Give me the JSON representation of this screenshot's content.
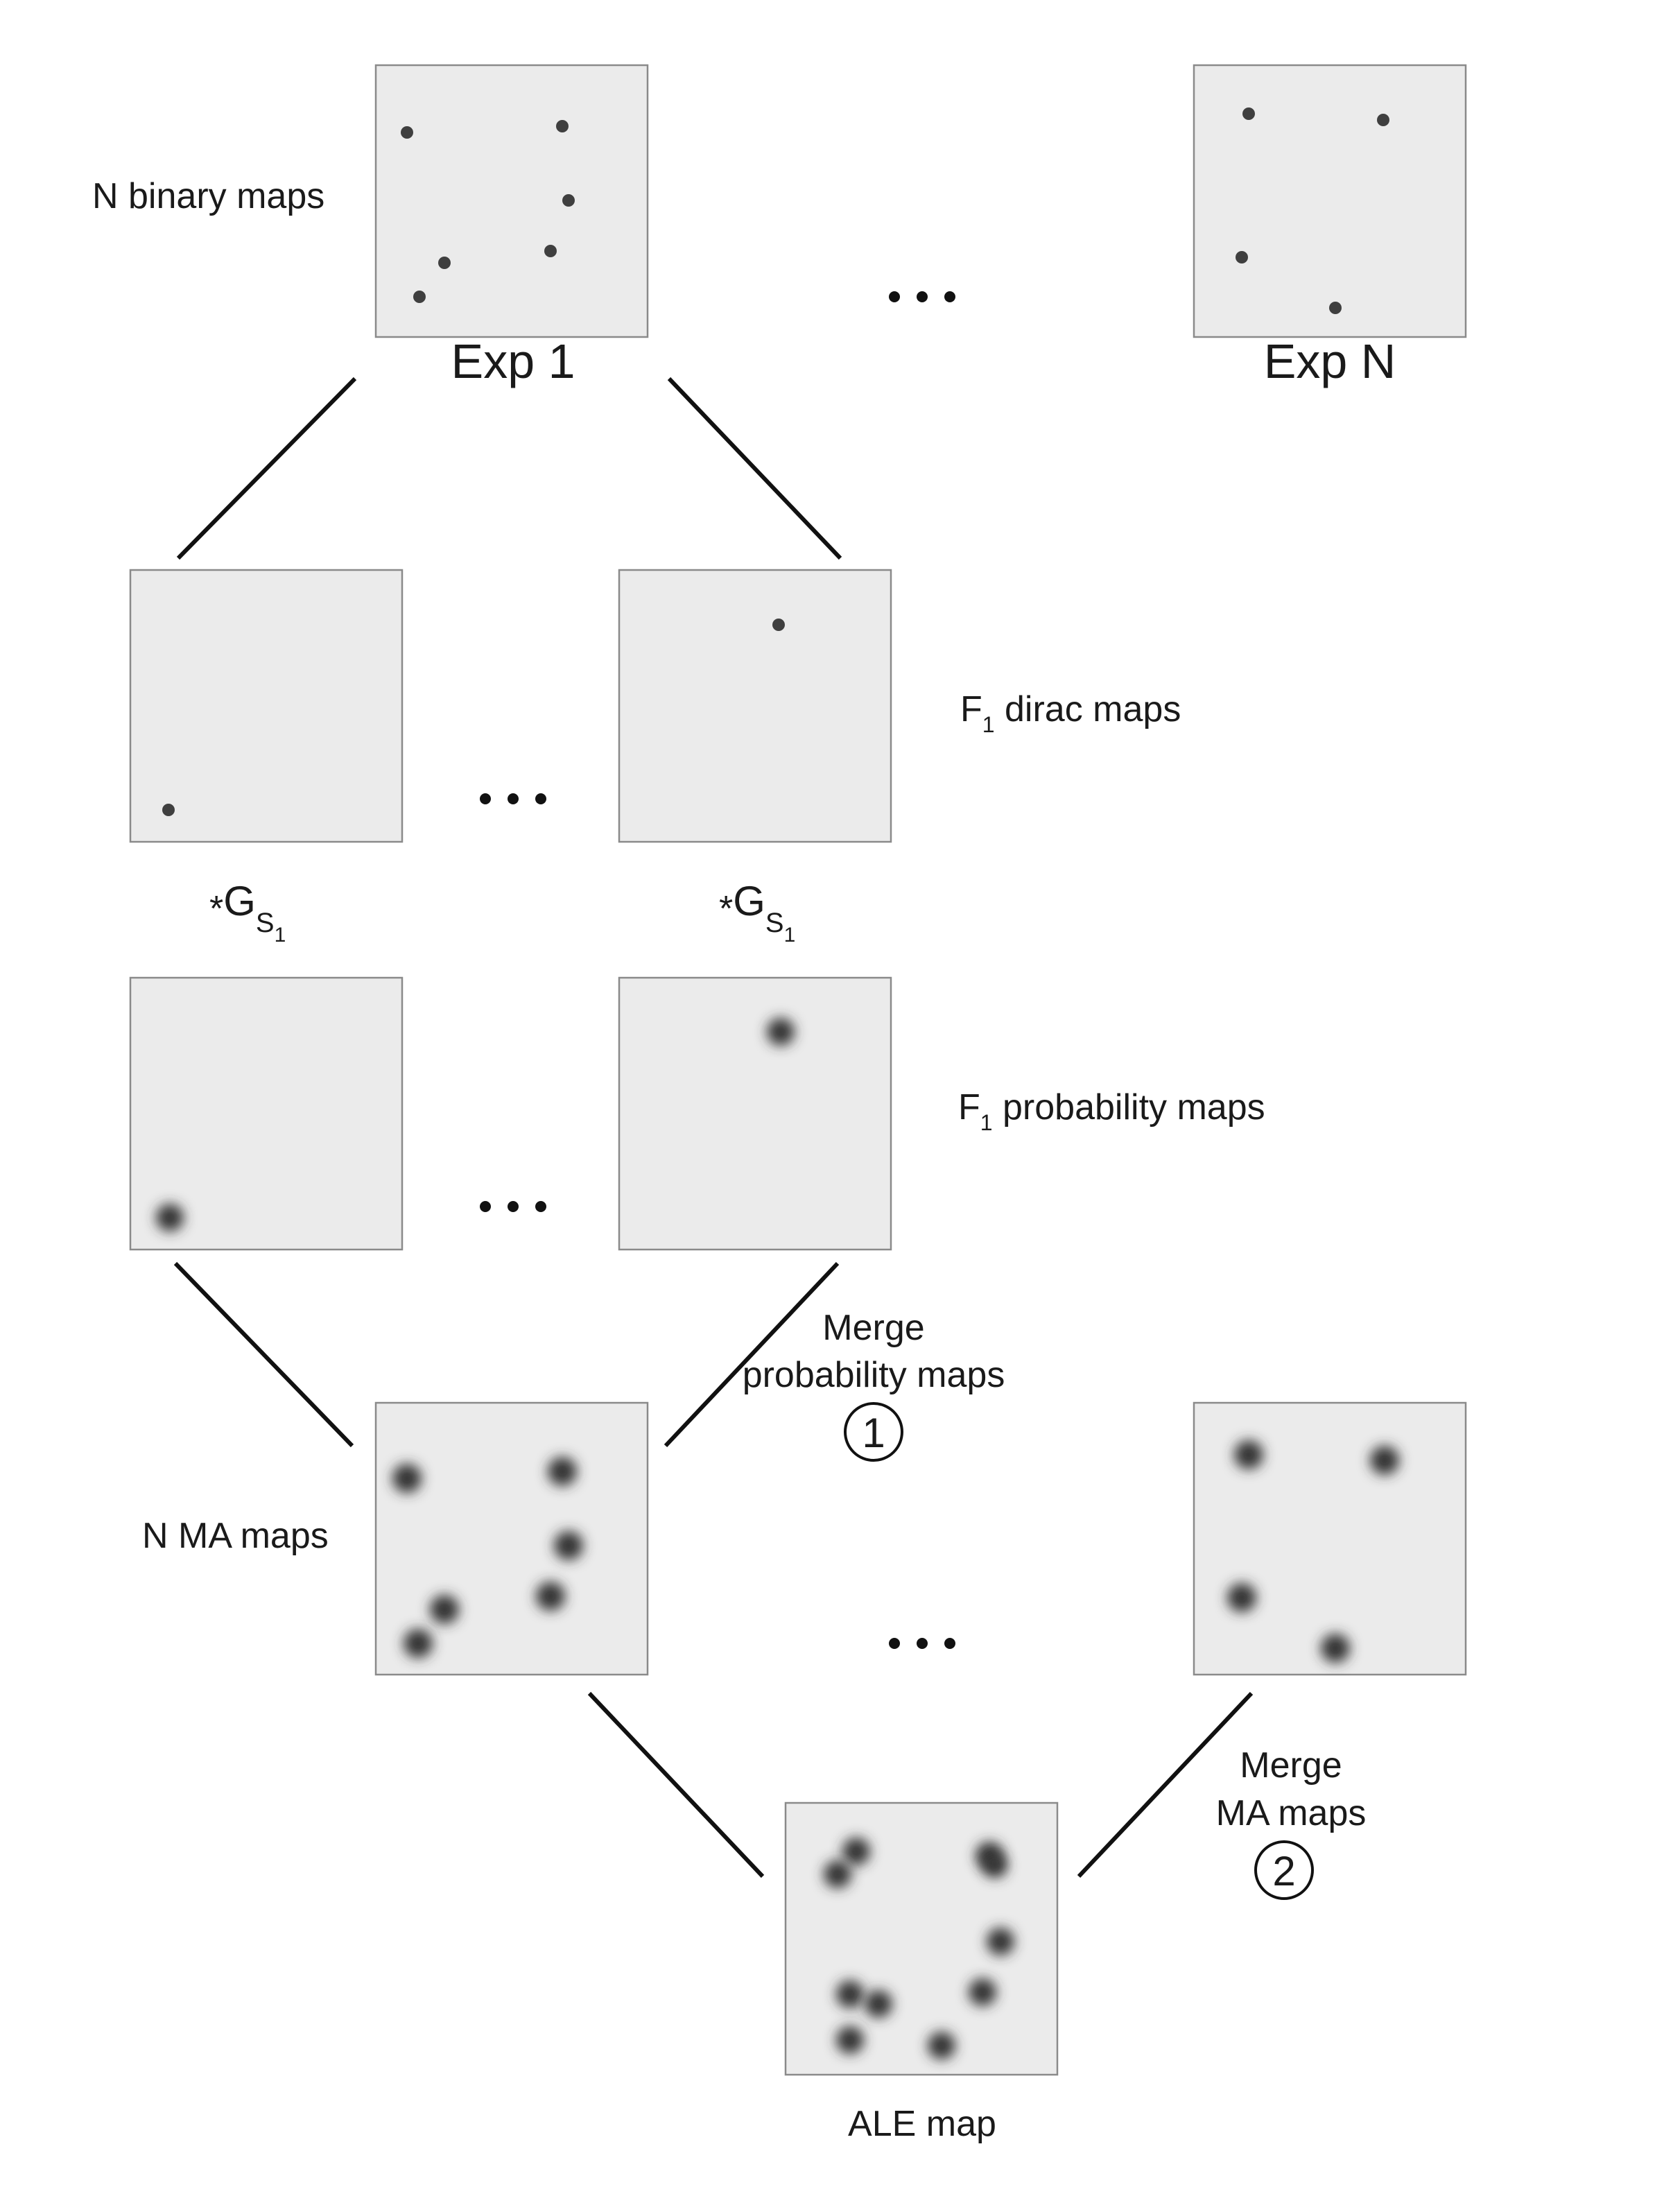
{
  "labels": {
    "n_binary_maps": "N binary maps",
    "exp_1": "Exp 1",
    "exp_n": "Exp N",
    "f1_dirac_maps": "F",
    "f1_dirac_sub": "1",
    "f1_dirac_rest": " dirac maps",
    "f1_prob_maps": "F",
    "f1_prob_sub": "1",
    "f1_prob_rest": " probability maps",
    "convolve_star": "*",
    "convolve_g": "G",
    "convolve_s": "S",
    "convolve_s_sub": "1",
    "merge_prob_line1": "Merge",
    "merge_prob_line2": "probability maps",
    "step1": "1",
    "n_ma_maps": "N MA maps",
    "merge_ma_line1": "Merge",
    "merge_ma_line2": "MA maps",
    "step2": "2",
    "ale_map": "ALE map"
  },
  "colors": {
    "map_background": "#ebebeb",
    "map_border": "#8a8a8a",
    "focus_dot": "#3f3f3f",
    "line": "#111111"
  }
}
